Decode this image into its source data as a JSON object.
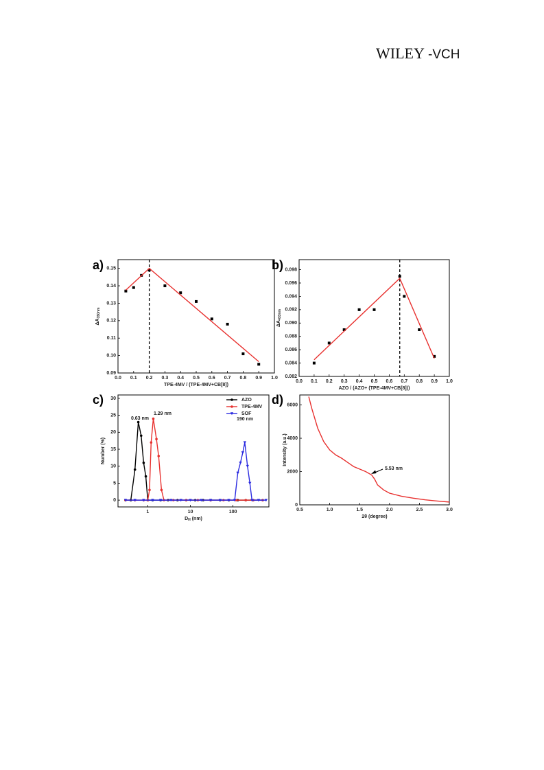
{
  "header": {
    "logo": "WILEY",
    "logo_suffix": "-VCH"
  },
  "chart_data": [
    {
      "type": "scatter",
      "panel": "a)",
      "x_label": "TPE-4MV / (TPE-4MV+CB[8])",
      "y_label": "ΔA",
      "y_label_sub": "350nm",
      "xlim": [
        0,
        1
      ],
      "ylim": [
        0.09,
        0.155
      ],
      "xticks": [
        {
          "value": 0,
          "label": "0.0"
        },
        0.1,
        0.2,
        0.3,
        0.4,
        0.5,
        0.6,
        0.7,
        0.8,
        0.9,
        {
          "value": 1,
          "label": "1.0"
        }
      ],
      "yticks": [
        0.09,
        {
          "value": 0.1,
          "label": "0.10"
        },
        0.11,
        0.12,
        0.13,
        0.14,
        0.15
      ],
      "vline": 0.2,
      "series": [
        {
          "color": "#000000",
          "marker": "square",
          "line": false,
          "x": [
            0.05,
            0.1,
            0.15,
            0.2,
            0.3,
            0.4,
            0.5,
            0.6,
            0.7,
            0.8,
            0.9
          ],
          "values": [
            0.137,
            0.139,
            0.146,
            0.149,
            0.14,
            0.136,
            0.131,
            0.121,
            0.118,
            0.101,
            0.095
          ]
        },
        {
          "color": "#e8312f",
          "marker": "none",
          "line": true,
          "x": [
            0.05,
            0.2,
            0.9
          ],
          "values": [
            0.1375,
            0.15,
            0.0965
          ]
        }
      ]
    },
    {
      "type": "scatter",
      "panel": "b)",
      "x_label": "AZO / (AZO+ (TPE-4MV+CB[8]))",
      "y_label": "ΔA",
      "y_label_sub": "433nm",
      "xlim": [
        0,
        1
      ],
      "ylim": [
        0.082,
        0.0995
      ],
      "xticks": [
        {
          "value": 0,
          "label": "0.0"
        },
        0.1,
        0.2,
        0.3,
        0.4,
        0.5,
        0.6,
        0.7,
        0.8,
        0.9,
        {
          "value": 1,
          "label": "1.0"
        }
      ],
      "yticks": [
        0.082,
        0.084,
        0.086,
        0.088,
        {
          "value": 0.09,
          "label": "0.090"
        },
        0.092,
        0.094,
        0.096,
        0.098
      ],
      "vline": 0.67,
      "series": [
        {
          "color": "#000000",
          "marker": "square",
          "line": false,
          "x": [
            0.1,
            0.2,
            0.3,
            0.4,
            0.5,
            0.67,
            0.7,
            0.8,
            0.9
          ],
          "values": [
            0.084,
            0.087,
            0.089,
            0.092,
            0.092,
            0.097,
            0.094,
            0.089,
            0.085
          ]
        },
        {
          "color": "#e8312f",
          "marker": "none",
          "line": true,
          "x": [
            0.1,
            0.67,
            0.9
          ],
          "values": [
            0.0845,
            0.0967,
            0.0847
          ]
        }
      ]
    },
    {
      "type": "line",
      "panel": "c)",
      "x_label": "D",
      "x_label_sub": "H",
      "x_label_unit": " (nm)",
      "y_label": "Number (%)",
      "xlog": true,
      "xlim": [
        0.2,
        700
      ],
      "ylim": [
        -2,
        31
      ],
      "xticks": [
        1,
        10,
        100
      ],
      "yticks": [
        0,
        5,
        10,
        15,
        20,
        25,
        30
      ],
      "legend": "top-right",
      "annotations": [
        {
          "text": "0.63 nm",
          "color": "#222222"
        },
        {
          "text": "1.29 nm",
          "color": "#e8312f"
        },
        {
          "text": "190 nm",
          "color": "#2a2ae0"
        }
      ],
      "series": [
        {
          "name": "AZO",
          "color": "#000000",
          "marker": "circle",
          "line": true,
          "x": [
            0.3,
            0.4,
            0.5,
            0.6,
            0.7,
            0.8,
            0.9,
            1.0,
            1.3,
            2,
            3,
            5,
            8,
            13,
            20,
            30,
            50,
            80,
            130,
            200,
            300,
            500
          ],
          "values": [
            0,
            0,
            9,
            23,
            19,
            11,
            7,
            0,
            0,
            0,
            0,
            0,
            0,
            0,
            0,
            0,
            0,
            0,
            0,
            0,
            0,
            0
          ]
        },
        {
          "name": "TPE-4MV",
          "color": "#e8312f",
          "marker": "circle",
          "line": true,
          "x": [
            0.3,
            0.5,
            0.8,
            1.0,
            1.1,
            1.2,
            1.35,
            1.6,
            1.8,
            2.1,
            2.4,
            4,
            8,
            15,
            30,
            60,
            120,
            200,
            300,
            500
          ],
          "values": [
            0,
            0,
            0,
            0,
            3,
            17,
            24,
            18,
            13,
            3,
            0,
            0,
            0,
            0,
            0,
            0,
            0,
            0,
            0,
            0
          ]
        },
        {
          "name": "SOF",
          "color": "#2a2ae0",
          "marker": "triangle-down",
          "line": true,
          "x": [
            0.3,
            0.5,
            0.8,
            1.3,
            2,
            3.5,
            6,
            10,
            18,
            30,
            50,
            80,
            110,
            130,
            150,
            170,
            190,
            220,
            250,
            280,
            400,
            600
          ],
          "values": [
            0,
            0,
            0,
            0,
            0,
            0,
            0,
            0,
            0,
            0,
            0,
            0,
            0,
            8,
            11,
            14,
            17,
            10,
            5,
            0,
            0,
            0
          ]
        }
      ]
    },
    {
      "type": "line",
      "panel": "d)",
      "x_label": "2θ  (degree)",
      "y_label": "Intensity (a.u.)",
      "xlim": [
        0.5,
        3.0
      ],
      "ylim": [
        0,
        6600
      ],
      "xticks": [
        0.5,
        {
          "value": 1,
          "label": "1.0"
        },
        1.5,
        {
          "value": 2,
          "label": "2.0"
        },
        2.5,
        {
          "value": 3,
          "label": "3.0"
        }
      ],
      "yticks": [
        0,
        2000,
        4000,
        6000
      ],
      "annotations": [
        {
          "text": "5.53 nm",
          "color": "#222222"
        }
      ],
      "series": [
        {
          "color": "#e8312f",
          "marker": "none",
          "line": true,
          "x": [
            0.65,
            0.7,
            0.8,
            0.9,
            1.0,
            1.1,
            1.2,
            1.3,
            1.4,
            1.5,
            1.6,
            1.7,
            1.75,
            1.8,
            1.9,
            2.0,
            2.2,
            2.4,
            2.6,
            2.8,
            3.0
          ],
          "values": [
            6500,
            5800,
            4600,
            3800,
            3300,
            3000,
            2800,
            2550,
            2300,
            2150,
            2000,
            1800,
            1550,
            1200,
            900,
            700,
            520,
            400,
            300,
            230,
            170
          ]
        }
      ]
    }
  ]
}
